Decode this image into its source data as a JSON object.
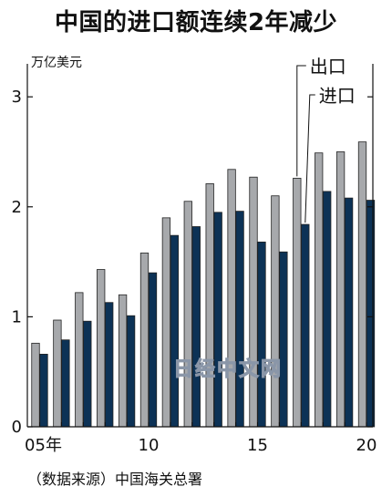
{
  "title": "中国的进口额连续2年减少",
  "source": "（数据来源）中国海关总署",
  "watermark": "日经中文网",
  "chart_data": {
    "type": "bar",
    "title": "中国的进口额连续2年减少",
    "ylabel": "万亿美元",
    "xlabel": "",
    "ylim": [
      0,
      3.3
    ],
    "yticks": [
      0,
      1,
      2,
      3
    ],
    "x_tick_labels": [
      {
        "year": 2005,
        "label": "05年"
      },
      {
        "year": 2010,
        "label": "10"
      },
      {
        "year": 2015,
        "label": "15"
      },
      {
        "year": 2020,
        "label": "20"
      }
    ],
    "categories": [
      2005,
      2006,
      2007,
      2008,
      2009,
      2010,
      2011,
      2012,
      2013,
      2014,
      2015,
      2016,
      2017,
      2018,
      2019,
      2020
    ],
    "series": [
      {
        "name": "出口",
        "color": "#a7a9ac",
        "values": [
          0.76,
          0.97,
          1.22,
          1.43,
          1.2,
          1.58,
          1.9,
          2.05,
          2.21,
          2.34,
          2.27,
          2.1,
          2.26,
          2.49,
          2.5,
          2.59
        ]
      },
      {
        "name": "进口",
        "color": "#0c3256",
        "values": [
          0.66,
          0.79,
          0.96,
          1.13,
          1.01,
          1.4,
          1.74,
          1.82,
          1.95,
          1.96,
          1.68,
          1.59,
          1.84,
          2.14,
          2.08,
          2.06
        ]
      }
    ],
    "legend_placement": "top-right, labels connected by leader lines to the 2017 bars",
    "grid": false
  }
}
